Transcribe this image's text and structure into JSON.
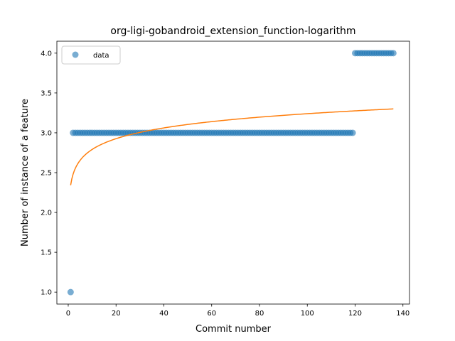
{
  "chart_data": {
    "type": "scatter",
    "title": "org-ligi-gobandroid_extension_function-logarithm",
    "xlabel": "Commit number",
    "ylabel": "Number of instance of a feature",
    "xlim": [
      -4.75,
      142.75
    ],
    "ylim": [
      0.85,
      4.15
    ],
    "xticks": [
      "0",
      "20",
      "40",
      "60",
      "80",
      "100",
      "120",
      "140"
    ],
    "yticks": [
      "1.0",
      "1.5",
      "2.0",
      "2.5",
      "3.0",
      "3.5",
      "4.0"
    ],
    "grid": false,
    "legend": {
      "placement": "top-left",
      "entries": [
        "data"
      ]
    },
    "series": [
      {
        "name": "data",
        "kind": "points",
        "color": "#1f77b4",
        "segments": [
          {
            "x_start": 1,
            "x_end": 1,
            "y": 1.0
          },
          {
            "x_start": 2,
            "x_end": 119,
            "y": 3.0
          },
          {
            "x_start": 120,
            "x_end": 136,
            "y": 4.0
          }
        ]
      },
      {
        "kind": "line",
        "color": "#ff7f0e",
        "fit": "logarithmic",
        "a": 2.342,
        "b": 0.195,
        "x_range": [
          1,
          136
        ]
      }
    ]
  }
}
